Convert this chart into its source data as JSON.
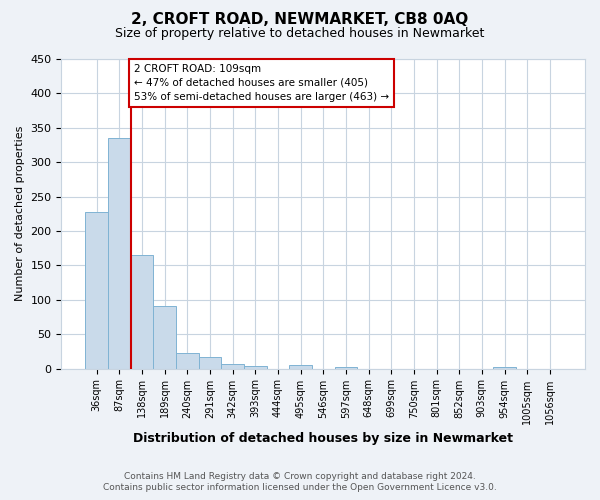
{
  "title": "2, CROFT ROAD, NEWMARKET, CB8 0AQ",
  "subtitle": "Size of property relative to detached houses in Newmarket",
  "xlabel": "Distribution of detached houses by size in Newmarket",
  "ylabel": "Number of detached properties",
  "bin_labels": [
    "36sqm",
    "87sqm",
    "138sqm",
    "189sqm",
    "240sqm",
    "291sqm",
    "342sqm",
    "393sqm",
    "444sqm",
    "495sqm",
    "546sqm",
    "597sqm",
    "648sqm",
    "699sqm",
    "750sqm",
    "801sqm",
    "852sqm",
    "903sqm",
    "954sqm",
    "1005sqm",
    "1056sqm"
  ],
  "bar_heights": [
    227,
    335,
    165,
    91,
    22,
    17,
    7,
    4,
    0,
    5,
    0,
    2,
    0,
    0,
    0,
    0,
    0,
    0,
    3,
    0,
    0
  ],
  "bar_color": "#c9daea",
  "bar_edge_color": "#7fb3d3",
  "vline_color": "#cc0000",
  "annotation_text": "2 CROFT ROAD: 109sqm\n← 47% of detached houses are smaller (405)\n53% of semi-detached houses are larger (463) →",
  "annotation_box_color": "#ffffff",
  "annotation_box_edge": "#cc0000",
  "ylim": [
    0,
    450
  ],
  "yticks": [
    0,
    50,
    100,
    150,
    200,
    250,
    300,
    350,
    400,
    450
  ],
  "footer_line1": "Contains HM Land Registry data © Crown copyright and database right 2024.",
  "footer_line2": "Contains public sector information licensed under the Open Government Licence v3.0.",
  "background_color": "#eef2f7",
  "plot_bg_color": "#ffffff",
  "grid_color": "#c8d4e0"
}
